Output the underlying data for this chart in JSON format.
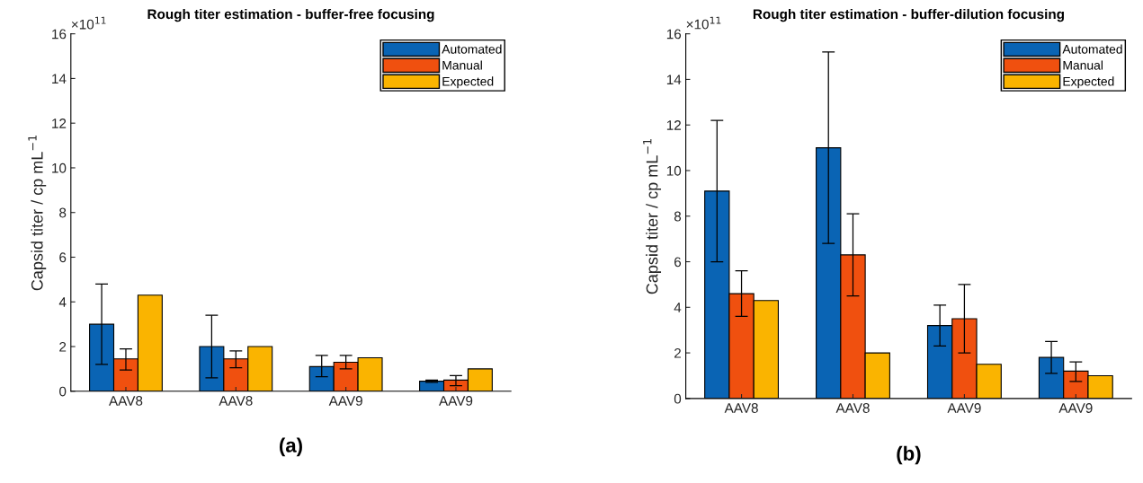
{
  "chart_data": [
    {
      "type": "bar",
      "title": "Rough titer estimation - buffer-free focusing",
      "ylabel": "Capsid titer / cp mL$^{−1}$",
      "categories": [
        "AAV8",
        "AAV8",
        "AAV9",
        "AAV9"
      ],
      "series": [
        {
          "name": "Automated",
          "color": "#0a64b4",
          "values": [
            3.0,
            2.0,
            1.1,
            0.45
          ],
          "errors": [
            [
              1.2,
              4.8
            ],
            [
              0.6,
              3.4
            ],
            [
              0.65,
              1.6
            ],
            [
              0.4,
              0.5
            ]
          ]
        },
        {
          "name": "Manual",
          "color": "#f0500f",
          "values": [
            1.45,
            1.45,
            1.3,
            0.5
          ],
          "errors": [
            [
              0.95,
              1.9
            ],
            [
              1.05,
              1.8
            ],
            [
              1.0,
              1.6
            ],
            [
              0.25,
              0.7
            ]
          ]
        },
        {
          "name": "Expected",
          "color": "#fab400",
          "values": [
            4.3,
            2.0,
            1.5,
            1.0
          ]
        }
      ],
      "ylim": [
        0,
        16
      ],
      "yticks": [
        0,
        2,
        4,
        6,
        8,
        10,
        12,
        14,
        16
      ],
      "grid": false,
      "legend": "top right",
      "annotations": [
        "×10$^{11}$",
        "(a)"
      ]
    },
    {
      "type": "bar",
      "title": "Rough titer estimation - buffer-dilution focusing",
      "ylabel": "Capsid titer / cp mL$^{−1}$",
      "categories": [
        "AAV8",
        "AAV8",
        "AAV9",
        "AAV9"
      ],
      "series": [
        {
          "name": "Automated",
          "color": "#0a64b4",
          "values": [
            9.1,
            11.0,
            3.2,
            1.8
          ],
          "errors": [
            [
              6.0,
              12.2
            ],
            [
              6.8,
              15.2
            ],
            [
              2.3,
              4.1
            ],
            [
              1.1,
              2.5
            ]
          ]
        },
        {
          "name": "Manual",
          "color": "#f0500f",
          "values": [
            4.6,
            6.3,
            3.5,
            1.2
          ],
          "errors": [
            [
              3.6,
              5.6
            ],
            [
              4.5,
              8.1
            ],
            [
              2.0,
              5.0
            ],
            [
              0.75,
              1.6
            ]
          ]
        },
        {
          "name": "Expected",
          "color": "#fab400",
          "values": [
            4.3,
            2.0,
            1.5,
            1.0
          ]
        }
      ],
      "ylim": [
        0,
        16
      ],
      "yticks": [
        0,
        2,
        4,
        6,
        8,
        10,
        12,
        14,
        16
      ],
      "grid": false,
      "legend": "top right",
      "annotations": [
        "×10$^{11}$",
        "(b)"
      ]
    }
  ]
}
